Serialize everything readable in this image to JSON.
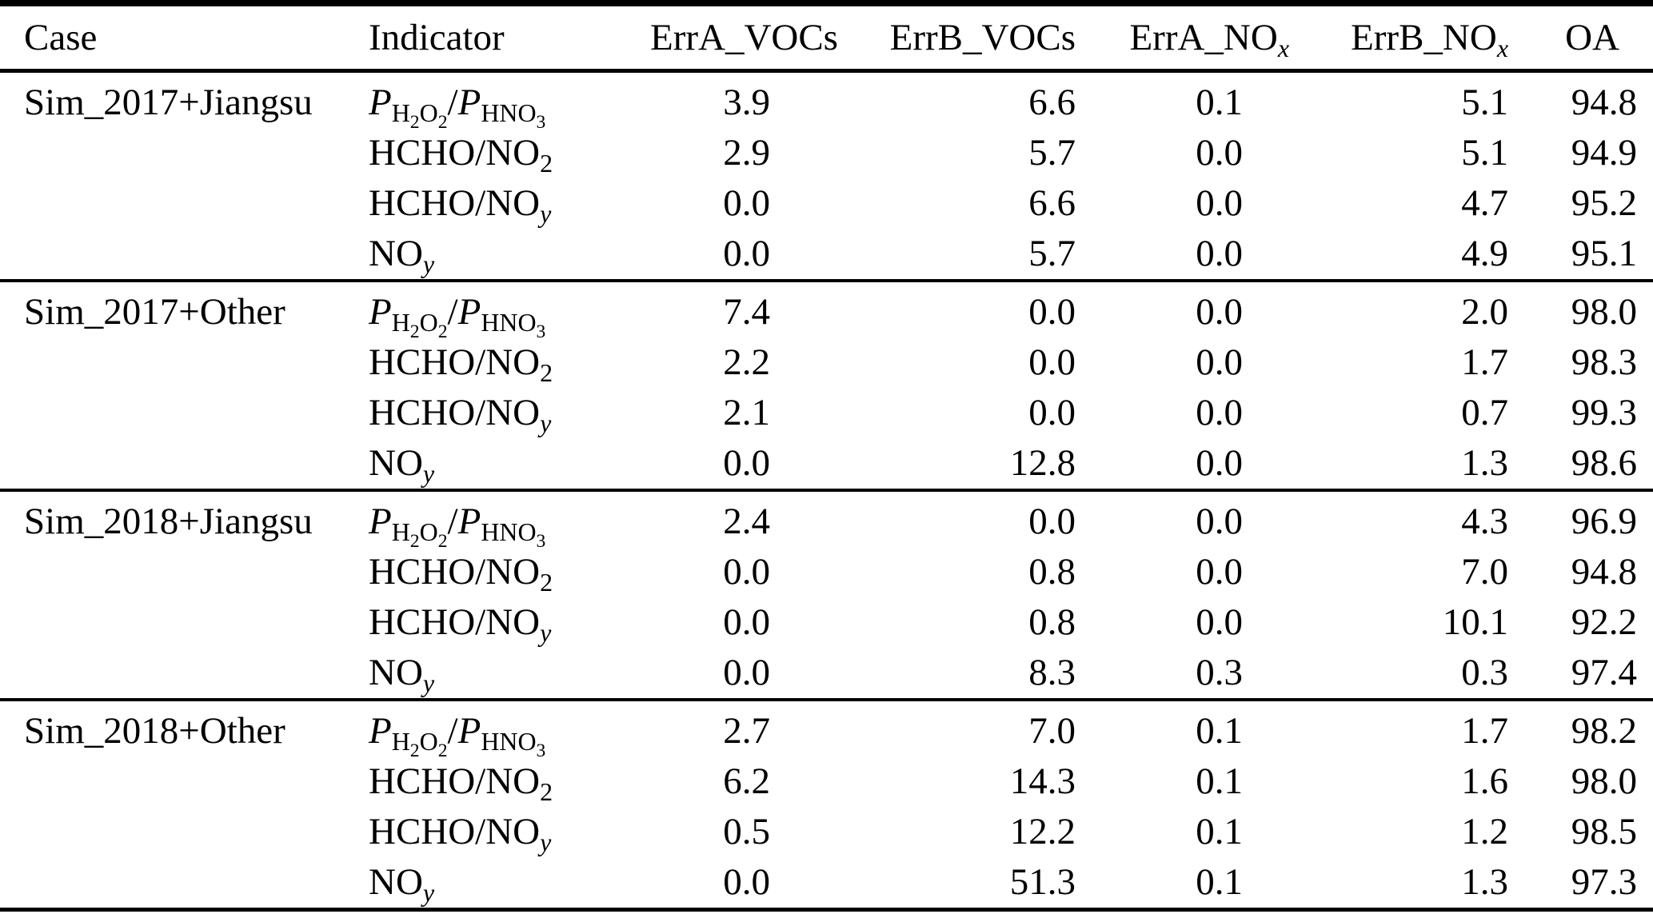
{
  "colors": {
    "text": "#000000",
    "background": "#ffffff",
    "rule": "#000000"
  },
  "table": {
    "columns": [
      {
        "key": "case",
        "label": "Case",
        "label_html": "Case"
      },
      {
        "key": "indicator",
        "label": "Indicator",
        "label_html": "Indicator"
      },
      {
        "key": "erra_vocs",
        "label": "ErrA_VOCs",
        "label_html": "ErrA_VOCs"
      },
      {
        "key": "errb_vocs",
        "label": "ErrB_VOCs",
        "label_html": "ErrB_VOCs"
      },
      {
        "key": "erra_nox",
        "label": "ErrA_NOx",
        "label_html": "ErrA_NO<sub><i>x</i></sub>"
      },
      {
        "key": "errb_nox",
        "label": "ErrB_NOx",
        "label_html": "ErrB_NO<sub><i>x</i></sub>"
      },
      {
        "key": "oa",
        "label": "OA",
        "label_html": "OA"
      }
    ],
    "groups": [
      {
        "case": "Sim_2017+Jiangsu",
        "rows": [
          {
            "indicator": "P_H2O2/P_HNO3",
            "indicator_html": "<i>P</i><sub>H<sub>2</sub>O<sub>2</sub></sub>/<i>P</i><sub>HNO<sub>3</sub></sub>",
            "values": [
              "3.9",
              "6.6",
              "0.1",
              "5.1",
              "94.8"
            ]
          },
          {
            "indicator": "HCHO/NO2",
            "indicator_html": "HCHO/NO<sub>2</sub>",
            "values": [
              "2.9",
              "5.7",
              "0.0",
              "5.1",
              "94.9"
            ]
          },
          {
            "indicator": "HCHO/NOy",
            "indicator_html": "HCHO/NO<sub><i>y</i></sub>",
            "values": [
              "0.0",
              "6.6",
              "0.0",
              "4.7",
              "95.2"
            ]
          },
          {
            "indicator": "NOy",
            "indicator_html": "NO<sub><i>y</i></sub>",
            "values": [
              "0.0",
              "5.7",
              "0.0",
              "4.9",
              "95.1"
            ]
          }
        ]
      },
      {
        "case": "Sim_2017+Other",
        "rows": [
          {
            "indicator": "P_H2O2/P_HNO3",
            "indicator_html": "<i>P</i><sub>H<sub>2</sub>O<sub>2</sub></sub>/<i>P</i><sub>HNO<sub>3</sub></sub>",
            "values": [
              "7.4",
              "0.0",
              "0.0",
              "2.0",
              "98.0"
            ]
          },
          {
            "indicator": "HCHO/NO2",
            "indicator_html": "HCHO/NO<sub>2</sub>",
            "values": [
              "2.2",
              "0.0",
              "0.0",
              "1.7",
              "98.3"
            ]
          },
          {
            "indicator": "HCHO/NOy",
            "indicator_html": "HCHO/NO<sub><i>y</i></sub>",
            "values": [
              "2.1",
              "0.0",
              "0.0",
              "0.7",
              "99.3"
            ]
          },
          {
            "indicator": "NOy",
            "indicator_html": "NO<sub><i>y</i></sub>",
            "values": [
              "0.0",
              "12.8",
              "0.0",
              "1.3",
              "98.6"
            ]
          }
        ]
      },
      {
        "case": "Sim_2018+Jiangsu",
        "rows": [
          {
            "indicator": "P_H2O2/P_HNO3",
            "indicator_html": "<i>P</i><sub>H<sub>2</sub>O<sub>2</sub></sub>/<i>P</i><sub>HNO<sub>3</sub></sub>",
            "values": [
              "2.4",
              "0.0",
              "0.0",
              "4.3",
              "96.9"
            ]
          },
          {
            "indicator": "HCHO/NO2",
            "indicator_html": "HCHO/NO<sub>2</sub>",
            "values": [
              "0.0",
              "0.8",
              "0.0",
              "7.0",
              "94.8"
            ]
          },
          {
            "indicator": "HCHO/NOy",
            "indicator_html": "HCHO/NO<sub><i>y</i></sub>",
            "values": [
              "0.0",
              "0.8",
              "0.0",
              "10.1",
              "92.2"
            ]
          },
          {
            "indicator": "NOy",
            "indicator_html": "NO<sub><i>y</i></sub>",
            "values": [
              "0.0",
              "8.3",
              "0.3",
              "0.3",
              "97.4"
            ]
          }
        ]
      },
      {
        "case": "Sim_2018+Other",
        "rows": [
          {
            "indicator": "P_H2O2/P_HNO3",
            "indicator_html": "<i>P</i><sub>H<sub>2</sub>O<sub>2</sub></sub>/<i>P</i><sub>HNO<sub>3</sub></sub>",
            "values": [
              "2.7",
              "7.0",
              "0.1",
              "1.7",
              "98.2"
            ]
          },
          {
            "indicator": "HCHO/NO2",
            "indicator_html": "HCHO/NO<sub>2</sub>",
            "values": [
              "6.2",
              "14.3",
              "0.1",
              "1.6",
              "98.0"
            ]
          },
          {
            "indicator": "HCHO/NOy",
            "indicator_html": "HCHO/NO<sub><i>y</i></sub>",
            "values": [
              "0.5",
              "12.2",
              "0.1",
              "1.2",
              "98.5"
            ]
          },
          {
            "indicator": "NOy",
            "indicator_html": "NO<sub><i>y</i></sub>",
            "values": [
              "0.0",
              "51.3",
              "0.1",
              "1.3",
              "97.3"
            ]
          }
        ]
      }
    ]
  }
}
